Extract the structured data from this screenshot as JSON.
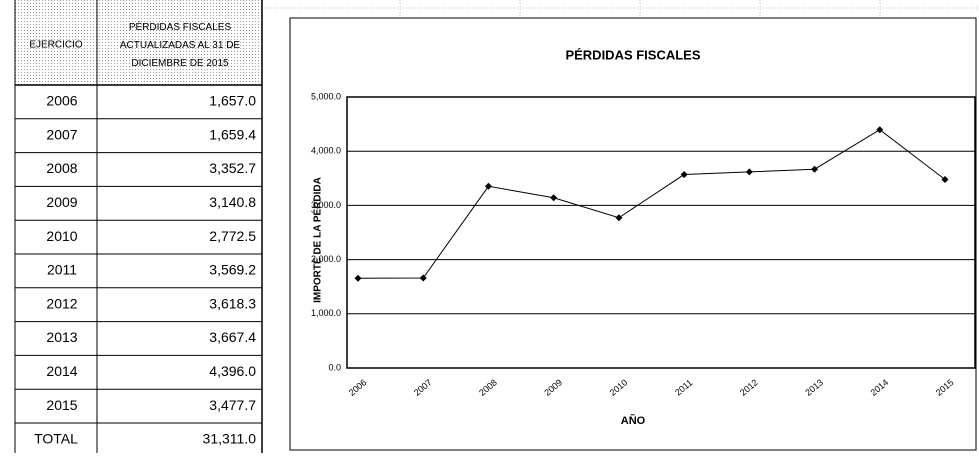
{
  "table": {
    "headers": [
      "EJERCICIO",
      "PÉRDIDAS FISCALES ACTUALIZADAS AL 31 DE DICIEMBRE DE 2015"
    ],
    "rows": [
      [
        "2006",
        "1,657.0"
      ],
      [
        "2007",
        "1,659.4"
      ],
      [
        "2008",
        "3,352.7"
      ],
      [
        "2009",
        "3,140.8"
      ],
      [
        "2010",
        "2,772.5"
      ],
      [
        "2011",
        "3,569.2"
      ],
      [
        "2012",
        "3,618.3"
      ],
      [
        "2013",
        "3,667.4"
      ],
      [
        "2014",
        "4,396.0"
      ],
      [
        "2015",
        "3,477.7"
      ]
    ],
    "total": [
      "TOTAL",
      "31,311.0"
    ]
  },
  "chart_data": {
    "type": "line",
    "title": "PÉRDIDAS FISCALES",
    "x_label": "AÑO",
    "y_label": "IMPORTE DE LA PÉRDIDA",
    "categories": [
      "2006",
      "2007",
      "2008",
      "2009",
      "2010",
      "2011",
      "2012",
      "2013",
      "2014",
      "2015"
    ],
    "values": [
      1657.0,
      1659.4,
      3352.7,
      3140.8,
      2772.5,
      3569.2,
      3618.3,
      3667.4,
      4396.0,
      3477.7
    ],
    "color": "#000000",
    "ylim": [
      0,
      5000
    ],
    "yticks": [
      {
        "value": 0,
        "label": "0.0"
      },
      {
        "value": 1000,
        "label": "1,000.0"
      },
      {
        "value": 2000,
        "label": "2,000.0"
      },
      {
        "value": 3000,
        "label": "3,000.0"
      },
      {
        "value": 4000,
        "label": "4,000.0"
      },
      {
        "value": 5000,
        "label": "5,000.0"
      }
    ],
    "grid": true
  }
}
